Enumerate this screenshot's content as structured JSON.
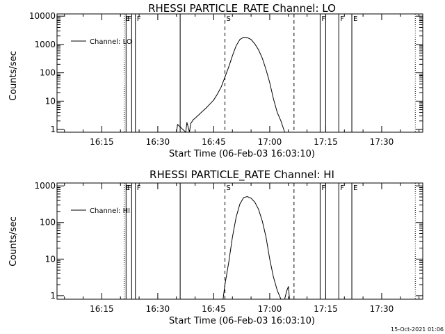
{
  "footer_timestamp": "15-Oct-2021 01:06",
  "chart_data": [
    {
      "type": "line",
      "title": "RHESSI PARTICLE_RATE Channel: LO",
      "xlabel": "Start Time (06-Feb-03 16:03:10)",
      "ylabel": "Counts/sec",
      "yscale": "log",
      "xlim": [
        "16:03",
        "17:41"
      ],
      "ylim": [
        0.8,
        12000
      ],
      "xticks": [
        "16:15",
        "16:30",
        "16:45",
        "17:00",
        "17:15",
        "17:30"
      ],
      "yticks": [
        "1",
        "10",
        "100",
        "1000",
        "10000"
      ],
      "legend": {
        "position": "top-left",
        "entries": [
          "Channel: LO"
        ]
      },
      "series": [
        {
          "name": "Channel: LO",
          "x": [
            "16:35",
            "16:35.3",
            "16:37.5",
            "16:37.8",
            "16:38.5",
            "16:38.8",
            "16:39.5",
            "16:40",
            "16:41",
            "16:42",
            "16:43",
            "16:44",
            "16:45",
            "16:46",
            "16:47",
            "16:48",
            "16:49",
            "16:50",
            "16:51",
            "16:52",
            "16:53",
            "16:54",
            "16:55",
            "16:56",
            "16:57",
            "16:58",
            "16:59",
            "17:00",
            "17:01",
            "17:02",
            "17:03",
            "17:04"
          ],
          "y": [
            0.8,
            1.5,
            0.8,
            1.8,
            0.8,
            1.6,
            2.2,
            2.5,
            3.3,
            4.4,
            5.8,
            8,
            11,
            18,
            32,
            70,
            160,
            400,
            900,
            1500,
            1800,
            1750,
            1500,
            1050,
            650,
            330,
            130,
            45,
            12,
            4,
            2,
            0.8
          ]
        }
      ],
      "vertical_markers": [
        {
          "time": "16:21",
          "label": "E",
          "style": "dotted"
        },
        {
          "time": "16:21.5",
          "label": "F",
          "style": "solid"
        },
        {
          "time": "16:23",
          "label": "",
          "style": "solid"
        },
        {
          "time": "16:24",
          "label": "F",
          "style": "solid"
        },
        {
          "time": "16:36",
          "label": "",
          "style": "solid"
        },
        {
          "time": "16:48",
          "label": "S",
          "style": "dashed"
        },
        {
          "time": "17:06.5",
          "label": "",
          "style": "dashed"
        },
        {
          "time": "17:13.5",
          "label": "F",
          "style": "solid"
        },
        {
          "time": "17:15",
          "label": "",
          "style": "solid"
        },
        {
          "time": "17:18.5",
          "label": "F",
          "style": "solid"
        },
        {
          "time": "17:22",
          "label": "E",
          "style": "solid"
        },
        {
          "time": "17:39",
          "label": "",
          "style": "dotted"
        }
      ]
    },
    {
      "type": "line",
      "title": "RHESSI PARTICLE_RATE Channel: HI",
      "xlabel": "Start Time (06-Feb-03 16:03:10)",
      "ylabel": "Counts/sec",
      "yscale": "log",
      "xlim": [
        "16:03",
        "17:41"
      ],
      "ylim": [
        0.8,
        1200
      ],
      "xticks": [
        "16:15",
        "16:30",
        "16:45",
        "17:00",
        "17:15",
        "17:30"
      ],
      "yticks": [
        "1",
        "10",
        "100",
        "1000"
      ],
      "legend": {
        "position": "top-left",
        "entries": [
          "Channel: HI"
        ]
      },
      "series": [
        {
          "name": "Channel: HI",
          "x": [
            "16:47.5",
            "16:48",
            "16:49",
            "16:50",
            "16:51",
            "16:52",
            "16:53",
            "16:54",
            "16:55",
            "16:56",
            "16:57",
            "16:58",
            "16:59",
            "17:00",
            "17:01",
            "17:02",
            "17:03",
            "17:04",
            "17:04.5",
            "17:05",
            "17:05.3"
          ],
          "y": [
            0.8,
            2,
            8,
            40,
            140,
            320,
            480,
            510,
            460,
            360,
            230,
            110,
            40,
            10,
            3.2,
            1.4,
            0.8,
            0.8,
            1.3,
            1.8,
            0.8
          ]
        }
      ],
      "vertical_markers": [
        {
          "time": "16:21",
          "label": "E",
          "style": "dotted"
        },
        {
          "time": "16:21.5",
          "label": "F",
          "style": "solid"
        },
        {
          "time": "16:23",
          "label": "",
          "style": "solid"
        },
        {
          "time": "16:24",
          "label": "F",
          "style": "solid"
        },
        {
          "time": "16:36",
          "label": "",
          "style": "solid"
        },
        {
          "time": "16:48",
          "label": "S",
          "style": "dashed"
        },
        {
          "time": "17:06.5",
          "label": "",
          "style": "dashed"
        },
        {
          "time": "17:13.5",
          "label": "F",
          "style": "solid"
        },
        {
          "time": "17:15",
          "label": "",
          "style": "solid"
        },
        {
          "time": "17:18.5",
          "label": "F",
          "style": "solid"
        },
        {
          "time": "17:22",
          "label": "E",
          "style": "solid"
        },
        {
          "time": "17:39",
          "label": "",
          "style": "dotted"
        }
      ]
    }
  ]
}
